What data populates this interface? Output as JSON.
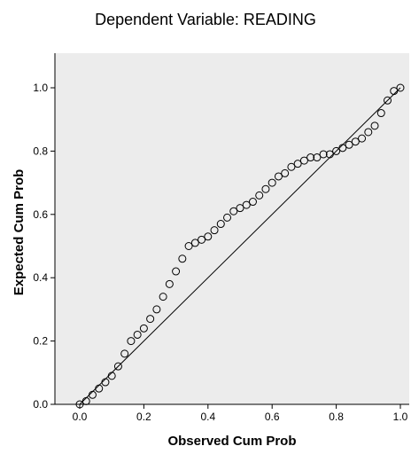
{
  "chart_data": {
    "type": "scatter",
    "title": "Dependent Variable: READING",
    "xlabel": "Observed Cum Prob",
    "ylabel": "Expected Cum Prob",
    "xlim": [
      0,
      1
    ],
    "ylim": [
      0,
      1.1
    ],
    "xticks": [
      "0.0",
      "0.2",
      "0.4",
      "0.6",
      "0.8",
      "1.0"
    ],
    "yticks": [
      "0.0",
      "0.2",
      "0.4",
      "0.6",
      "0.8",
      "1.0"
    ],
    "grid": false,
    "reference_line": [
      [
        0,
        0
      ],
      [
        1,
        1
      ]
    ],
    "points": [
      [
        0.0,
        0.0
      ],
      [
        0.02,
        0.01
      ],
      [
        0.04,
        0.03
      ],
      [
        0.06,
        0.05
      ],
      [
        0.08,
        0.07
      ],
      [
        0.1,
        0.09
      ],
      [
        0.12,
        0.12
      ],
      [
        0.14,
        0.16
      ],
      [
        0.16,
        0.2
      ],
      [
        0.18,
        0.22
      ],
      [
        0.2,
        0.24
      ],
      [
        0.22,
        0.27
      ],
      [
        0.24,
        0.3
      ],
      [
        0.26,
        0.34
      ],
      [
        0.28,
        0.38
      ],
      [
        0.3,
        0.42
      ],
      [
        0.32,
        0.46
      ],
      [
        0.34,
        0.5
      ],
      [
        0.36,
        0.51
      ],
      [
        0.38,
        0.52
      ],
      [
        0.4,
        0.53
      ],
      [
        0.42,
        0.55
      ],
      [
        0.44,
        0.57
      ],
      [
        0.46,
        0.59
      ],
      [
        0.48,
        0.61
      ],
      [
        0.5,
        0.62
      ],
      [
        0.52,
        0.63
      ],
      [
        0.54,
        0.64
      ],
      [
        0.56,
        0.66
      ],
      [
        0.58,
        0.68
      ],
      [
        0.6,
        0.7
      ],
      [
        0.62,
        0.72
      ],
      [
        0.64,
        0.73
      ],
      [
        0.66,
        0.75
      ],
      [
        0.68,
        0.76
      ],
      [
        0.7,
        0.77
      ],
      [
        0.72,
        0.78
      ],
      [
        0.74,
        0.78
      ],
      [
        0.76,
        0.79
      ],
      [
        0.78,
        0.79
      ],
      [
        0.8,
        0.8
      ],
      [
        0.82,
        0.81
      ],
      [
        0.84,
        0.82
      ],
      [
        0.86,
        0.83
      ],
      [
        0.88,
        0.84
      ],
      [
        0.9,
        0.86
      ],
      [
        0.92,
        0.88
      ],
      [
        0.94,
        0.92
      ],
      [
        0.96,
        0.96
      ],
      [
        0.98,
        0.99
      ],
      [
        1.0,
        1.0
      ]
    ]
  },
  "colors": {
    "plot_background": "#ececec",
    "marker": "#000000",
    "reference_line": "#000000"
  }
}
